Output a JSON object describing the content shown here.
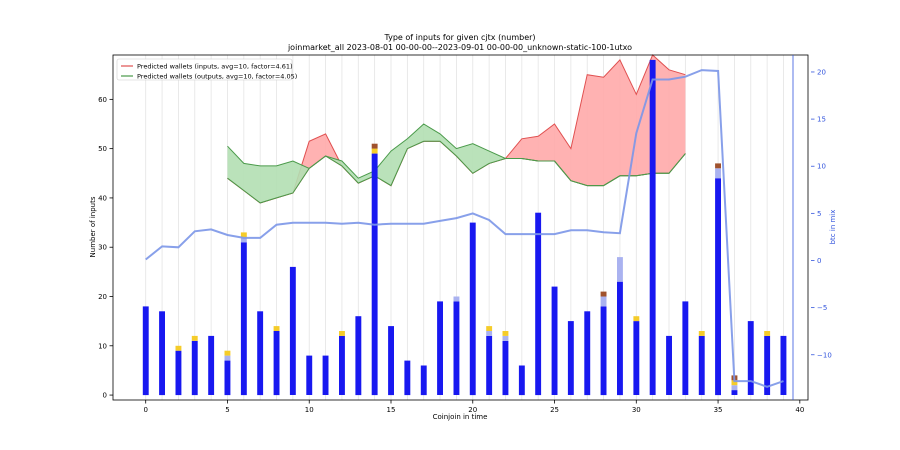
{
  "chart_data": {
    "type": "bar",
    "title": "Type of inputs for given cjtx (number)",
    "subtitle": "joinmarket_all 2023-08-01 00-00-00--2023-09-01 00-00-00_unknown-static-100-1utxo",
    "xlabel": "Coinjoin in time",
    "ylabel": "Number of inputs",
    "y2label": "btc in mix",
    "xlim": [
      -2,
      40.5
    ],
    "ylim": [
      -1,
      69
    ],
    "y2lim": [
      -14.8,
      21.8
    ],
    "xticks": [
      0,
      5,
      10,
      15,
      20,
      25,
      30,
      35,
      40
    ],
    "yticks": [
      0,
      10,
      20,
      30,
      40,
      50,
      60
    ],
    "y2ticks": [
      -10,
      -5,
      0,
      5,
      10,
      15,
      20
    ],
    "grid": "vertical lines at each coinjoin",
    "legend_position": "top-left",
    "colors": {
      "bar_main": "#1818f0",
      "bar_light": "#aab2f0",
      "bar_yellow": "#f5cc2a",
      "bar_brown": "#a0522d",
      "inputs_edge": "#e05050",
      "inputs_fill": "#ffaaaa",
      "outputs_edge": "#4a9a4a",
      "outputs_fill": "#b2dfb2",
      "btc_line": "#7b96e8",
      "right_axis": "#3355dd"
    },
    "x": [
      0,
      1,
      2,
      3,
      4,
      5,
      6,
      7,
      8,
      9,
      10,
      11,
      12,
      13,
      14,
      15,
      16,
      17,
      18,
      19,
      20,
      21,
      22,
      23,
      24,
      25,
      26,
      27,
      28,
      29,
      30,
      31,
      32,
      33,
      34,
      35,
      36,
      37,
      38,
      39
    ],
    "series": [
      {
        "name": "",
        "color": "#1818f0",
        "values": [
          18,
          17,
          9,
          11,
          12,
          7,
          31,
          17,
          13,
          26,
          8,
          8,
          12,
          16,
          49,
          14,
          7,
          6,
          19,
          19,
          35,
          12,
          11,
          6,
          37,
          22,
          15,
          17,
          18,
          23,
          15,
          68,
          12,
          19,
          12,
          44,
          1,
          15,
          12,
          12
        ]
      },
      {
        "name": "",
        "color": "#aab2f0",
        "values": [
          0,
          0,
          0,
          0,
          0,
          1,
          1,
          0,
          0,
          0,
          0,
          0,
          0,
          0,
          0,
          0,
          0,
          0,
          0,
          1,
          0,
          1,
          1,
          0,
          0,
          0,
          0,
          0,
          2,
          5,
          0,
          0,
          0,
          0,
          0,
          2,
          1,
          0,
          0,
          0
        ]
      },
      {
        "name": "",
        "color": "#f5cc2a",
        "values": [
          0,
          0,
          1,
          1,
          0,
          1,
          1,
          0,
          1,
          0,
          0,
          0,
          1,
          0,
          1,
          0,
          0,
          0,
          0,
          0,
          0,
          1,
          1,
          0,
          0,
          0,
          0,
          0,
          0,
          0,
          1,
          0,
          0,
          0,
          1,
          0,
          1,
          0,
          1,
          0
        ]
      },
      {
        "name": "",
        "color": "#a0522d",
        "values": [
          0,
          0,
          0,
          0,
          0,
          0,
          0,
          0,
          0,
          0,
          0,
          0,
          0,
          0,
          1,
          0,
          0,
          0,
          0,
          0,
          0,
          0,
          0,
          0,
          0,
          0,
          0,
          0,
          1,
          0,
          0,
          0,
          0,
          0,
          0,
          1,
          1,
          0,
          0,
          0
        ]
      }
    ],
    "bands": [
      {
        "name": "Predicted wallets (inputs, avg=10, factor=4.61)",
        "color": "#e05050",
        "fill": "#ffaaaa",
        "x": [
          5,
          6,
          7,
          8,
          9,
          10,
          11,
          12,
          13,
          14,
          15,
          16,
          17,
          18,
          19,
          20,
          21,
          22,
          23,
          24,
          25,
          26,
          27,
          28,
          29,
          30,
          31,
          32,
          33
        ],
        "upper": [
          44,
          41.5,
          39,
          40,
          41,
          51.5,
          53,
          46.5,
          43,
          44.5,
          42.5,
          50,
          51.5,
          51.5,
          48.5,
          45,
          47,
          48,
          52,
          52.5,
          55,
          50,
          65,
          64.5,
          68,
          61,
          69,
          66,
          65
        ],
        "lower": [
          44,
          41.5,
          39,
          40,
          41,
          46,
          48.5,
          46.5,
          43,
          44.5,
          42.5,
          50,
          51.5,
          51.5,
          48.5,
          45,
          47,
          48,
          48,
          47.5,
          47.5,
          43.5,
          42.5,
          42.5,
          44.5,
          44.5,
          45,
          45,
          49
        ]
      },
      {
        "name": "Predicted wallets (outputs, avg=10, factor=4.05)",
        "color": "#4a9a4a",
        "fill": "#b2dfb2",
        "x": [
          5,
          6,
          7,
          8,
          9,
          10,
          11,
          12,
          13,
          14,
          15,
          16,
          17,
          18,
          19,
          20,
          21,
          22,
          23,
          24,
          25,
          26,
          27,
          28,
          29,
          30,
          31,
          32,
          33
        ],
        "upper": [
          50.5,
          47,
          46.5,
          46.5,
          47.5,
          46,
          48.5,
          47.5,
          44,
          45.5,
          49.5,
          52,
          55,
          53,
          50,
          51,
          49.5,
          48,
          48,
          47.5,
          47.5,
          43.5,
          42.5,
          42.5,
          44.5,
          44.5,
          45,
          45,
          49
        ],
        "lower": [
          44,
          41.5,
          39,
          40,
          41,
          46,
          48.5,
          46.5,
          43,
          44.5,
          42.5,
          50,
          51.5,
          51.5,
          48.5,
          45,
          47,
          48,
          48,
          47.5,
          47.5,
          43.5,
          42.5,
          42.5,
          44.5,
          44.5,
          45,
          45,
          49
        ]
      }
    ],
    "line": {
      "name": "",
      "x": [
        0,
        1,
        2,
        3,
        4,
        5,
        6,
        7,
        8,
        9,
        10,
        11,
        12,
        13,
        14,
        15,
        16,
        17,
        18,
        19,
        20,
        21,
        22,
        23,
        24,
        25,
        26,
        27,
        28,
        29,
        30,
        31,
        32,
        33,
        34,
        35,
        36,
        37,
        38,
        39
      ],
      "values": [
        0.1,
        1.5,
        1.4,
        3.1,
        3.3,
        2.7,
        2.4,
        2.4,
        3.8,
        4.0,
        4.0,
        4.0,
        3.9,
        4.0,
        3.8,
        3.9,
        3.9,
        3.9,
        4.2,
        4.5,
        5.0,
        4.3,
        2.8,
        2.8,
        2.8,
        2.8,
        3.2,
        3.2,
        3.0,
        2.9,
        13.5,
        19.2,
        19.2,
        19.5,
        20.2,
        20.1,
        -12.8,
        -12.8,
        -13.4,
        -12.8
      ]
    }
  }
}
